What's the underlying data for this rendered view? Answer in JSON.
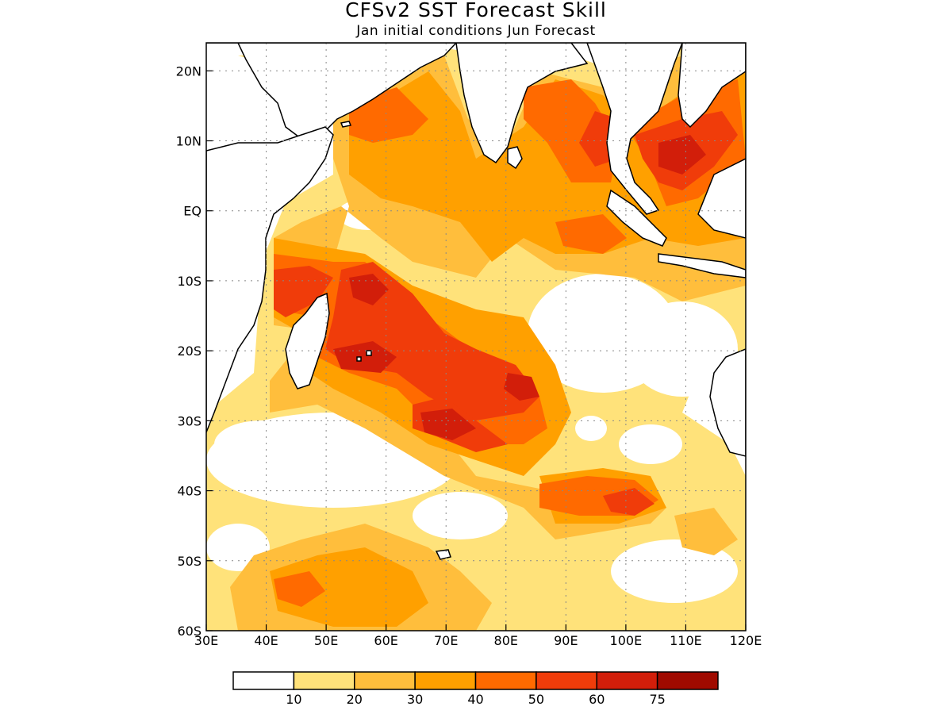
{
  "title": "CFSv2 SST Forecast Skill",
  "subtitle": "Jan initial conditions   Jun Forecast",
  "map": {
    "lon_range": [
      30,
      120
    ],
    "lat_range": [
      -60,
      24
    ],
    "grid": true,
    "x_ticks": [
      "30E",
      "40E",
      "50E",
      "60E",
      "70E",
      "80E",
      "90E",
      "100E",
      "110E",
      "120E"
    ],
    "y_ticks": [
      "20N",
      "10N",
      "EQ",
      "10S",
      "20S",
      "30S",
      "40S",
      "50S",
      "60S"
    ]
  },
  "colorbar": {
    "bins": [
      {
        "color": "#ffffff"
      },
      {
        "color": "#ffe27a"
      },
      {
        "color": "#ffbe3c"
      },
      {
        "color": "#ffa000"
      },
      {
        "color": "#ff6a00"
      },
      {
        "color": "#f03c0a"
      },
      {
        "color": "#d21e0a"
      },
      {
        "color": "#a00a00"
      }
    ],
    "labels": [
      "10",
      "20",
      "30",
      "40",
      "50",
      "60",
      "75"
    ]
  }
}
